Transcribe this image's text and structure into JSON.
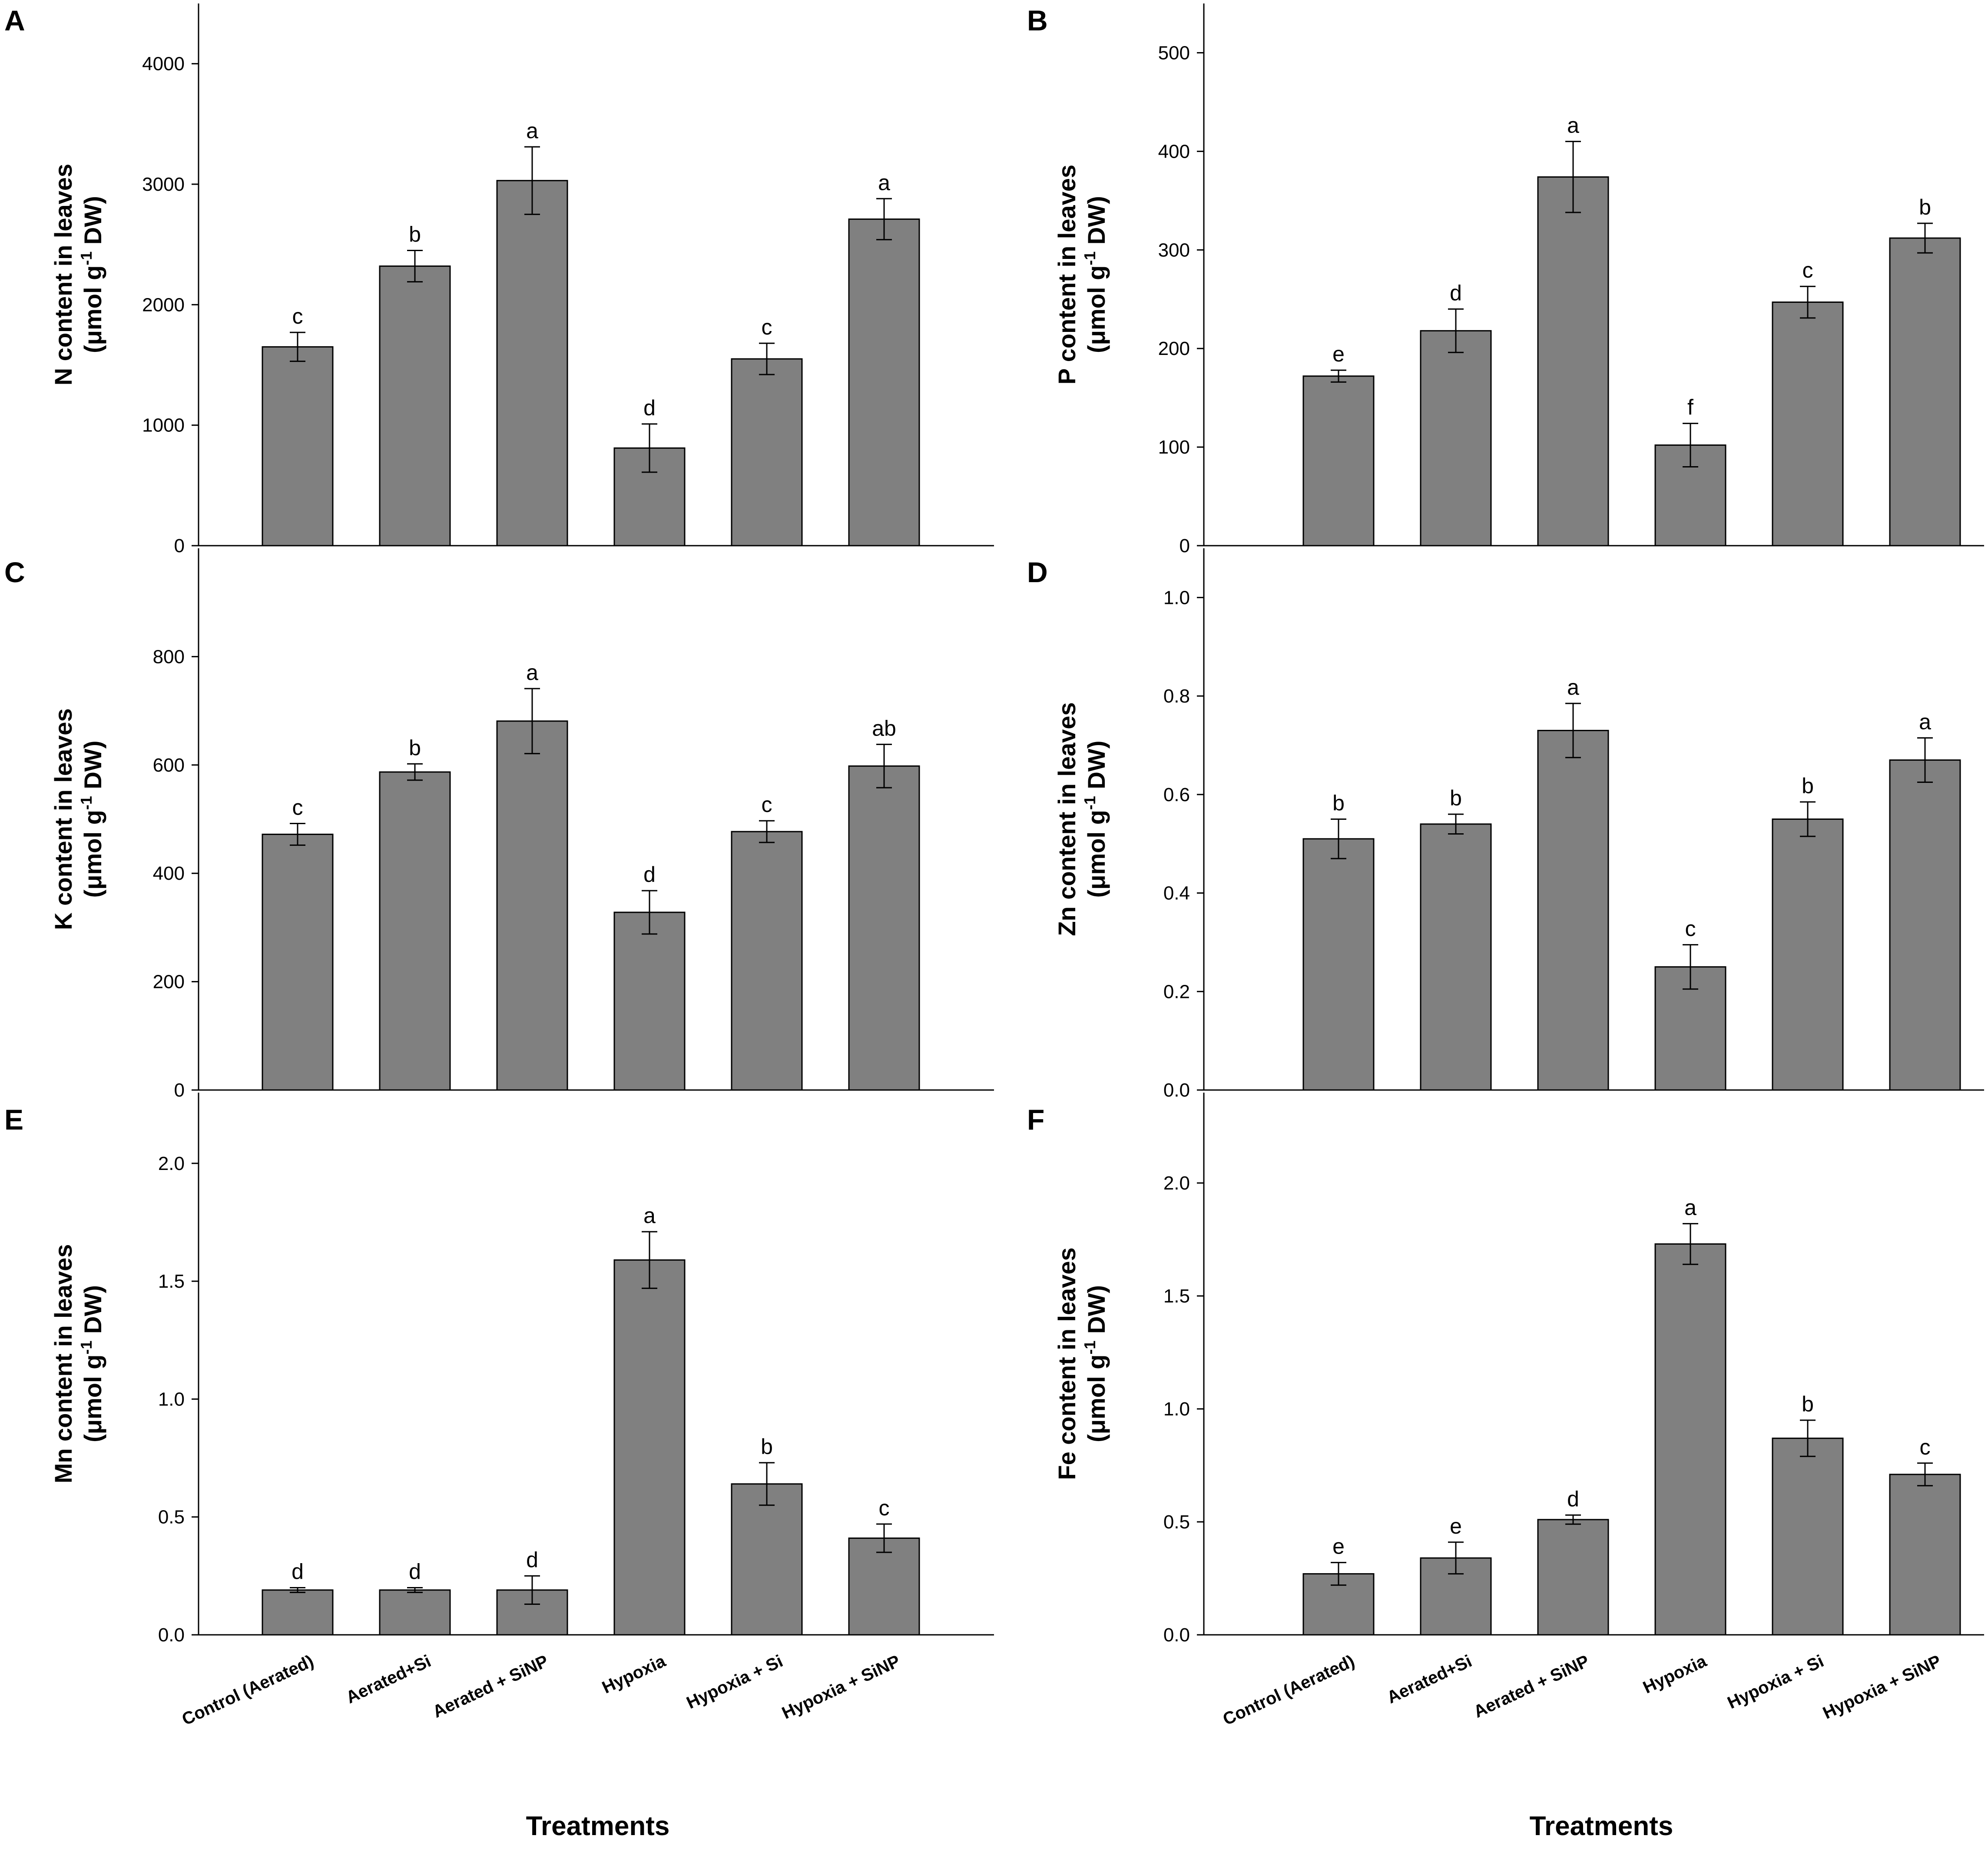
{
  "x_axis_title": "Treatments",
  "chart_data": [
    {
      "panel": "A",
      "type": "bar",
      "ylabel_line1": "N content in leaves",
      "ylabel_line2_pre": "(μmol g",
      "ylabel_sup": "-1",
      "ylabel_line2_post": " DW)",
      "ylim": [
        0,
        4500
      ],
      "yticks": [
        0,
        1000,
        2000,
        3000,
        4000
      ],
      "ytick_labels": [
        "0",
        "1000",
        "2000",
        "3000",
        "4000"
      ],
      "categories": [
        "Control (Aerated)",
        "Aerated+Si",
        "Aerated + SiNP",
        "Hypoxia",
        "Hypoxia + Si",
        "Hypoxia + SiNP"
      ],
      "values": [
        1650,
        2320,
        3030,
        810,
        1550,
        2710
      ],
      "errors": [
        120,
        130,
        280,
        200,
        130,
        170
      ],
      "letters": [
        "c",
        "b",
        "a",
        "d",
        "c",
        "a"
      ],
      "show_category_labels": false
    },
    {
      "panel": "B",
      "type": "bar",
      "ylabel_line1": "P content in leaves",
      "ylabel_line2_pre": "(μmol g",
      "ylabel_sup": "-1",
      "ylabel_line2_post": " DW)",
      "ylim": [
        0,
        550
      ],
      "yticks": [
        0,
        100,
        200,
        300,
        400,
        500
      ],
      "ytick_labels": [
        "0",
        "100",
        "200",
        "300",
        "400",
        "500"
      ],
      "categories": [
        "Control (Aerated)",
        "Aerated+Si",
        "Aerated + SiNP",
        "Hypoxia",
        "Hypoxia + Si",
        "Hypoxia + SiNP"
      ],
      "values": [
        172,
        218,
        374,
        102,
        247,
        312
      ],
      "errors": [
        6,
        22,
        36,
        22,
        16,
        15
      ],
      "letters": [
        "e",
        "d",
        "a",
        "f",
        "c",
        "b"
      ],
      "show_category_labels": false
    },
    {
      "panel": "C",
      "type": "bar",
      "ylabel_line1": "K content in leaves",
      "ylabel_line2_pre": "(μmol g",
      "ylabel_sup": "-1",
      "ylabel_line2_post": " DW)",
      "ylim": [
        0,
        1000
      ],
      "yticks": [
        0,
        200,
        400,
        600,
        800
      ],
      "ytick_labels": [
        "0",
        "200",
        "400",
        "600",
        "800"
      ],
      "categories": [
        "Control (Aerated)",
        "Aerated+Si",
        "Aerated + SiNP",
        "Hypoxia",
        "Hypoxia + Si",
        "Hypoxia + SiNP"
      ],
      "values": [
        472,
        587,
        681,
        328,
        477,
        598
      ],
      "errors": [
        20,
        15,
        60,
        40,
        20,
        40
      ],
      "letters": [
        "c",
        "b",
        "a",
        "d",
        "c",
        "ab"
      ],
      "show_category_labels": false
    },
    {
      "panel": "D",
      "type": "bar",
      "ylabel_line1": "Zn content in leaves",
      "ylabel_line2_pre": "(μmol g",
      "ylabel_sup": "-1",
      "ylabel_line2_post": " DW)",
      "ylim": [
        0,
        1.1
      ],
      "yticks": [
        0,
        0.2,
        0.4,
        0.6,
        0.8,
        1.0
      ],
      "ytick_labels": [
        "0.0",
        "0.2",
        "0.4",
        "0.6",
        "0.8",
        "1.0"
      ],
      "categories": [
        "Control (Aerated)",
        "Aerated+Si",
        "Aerated + SiNP",
        "Hypoxia",
        "Hypoxia + Si",
        "Hypoxia + SiNP"
      ],
      "values": [
        0.51,
        0.54,
        0.73,
        0.25,
        0.55,
        0.67
      ],
      "errors": [
        0.04,
        0.02,
        0.055,
        0.045,
        0.035,
        0.045
      ],
      "letters": [
        "b",
        "b",
        "a",
        "c",
        "b",
        "a"
      ],
      "show_category_labels": false
    },
    {
      "panel": "E",
      "type": "bar",
      "ylabel_line1": "Mn content in leaves",
      "ylabel_line2_pre": "(μmol g",
      "ylabel_sup": "-1",
      "ylabel_line2_post": " DW)",
      "ylim": [
        0,
        2.3
      ],
      "yticks": [
        0,
        0.5,
        1.0,
        1.5,
        2.0
      ],
      "ytick_labels": [
        "0.0",
        "0.5",
        "1.0",
        "1.5",
        "2.0"
      ],
      "categories": [
        "Control (Aerated)",
        "Aerated+Si",
        "Aerated + SiNP",
        "Hypoxia",
        "Hypoxia + Si",
        "Hypoxia + SiNP"
      ],
      "values": [
        0.19,
        0.19,
        0.19,
        1.59,
        0.64,
        0.41
      ],
      "errors": [
        0.01,
        0.01,
        0.06,
        0.12,
        0.09,
        0.06
      ],
      "letters": [
        "d",
        "d",
        "d",
        "a",
        "b",
        "c"
      ],
      "show_category_labels": true
    },
    {
      "panel": "F",
      "type": "bar",
      "ylabel_line1": "Fe content in leaves",
      "ylabel_line2_pre": "(μmol g",
      "ylabel_sup": "-1",
      "ylabel_line2_post": " DW)",
      "ylim": [
        0,
        2.4
      ],
      "yticks": [
        0,
        0.5,
        1.0,
        1.5,
        2.0
      ],
      "ytick_labels": [
        "0.0",
        "0.5",
        "1.0",
        "1.5",
        "2.0"
      ],
      "categories": [
        "Control (Aerated)",
        "Aerated+Si",
        "Aerated + SiNP",
        "Hypoxia",
        "Hypoxia + Si",
        "Hypoxia + SiNP"
      ],
      "values": [
        0.27,
        0.34,
        0.51,
        1.73,
        0.87,
        0.71
      ],
      "errors": [
        0.05,
        0.07,
        0.02,
        0.09,
        0.08,
        0.05
      ],
      "letters": [
        "e",
        "e",
        "d",
        "a",
        "b",
        "c"
      ],
      "show_category_labels": true
    }
  ]
}
